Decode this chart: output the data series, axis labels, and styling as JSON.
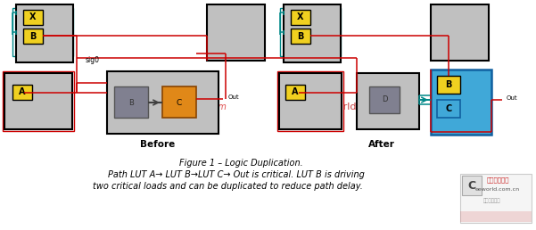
{
  "bg_color": "#ffffff",
  "fig_width": 6.01,
  "fig_height": 2.58,
  "dpi": 100,
  "caption_line1": "Figure 1 – Logic Duplication.",
  "caption_line2": "Path LUT A→ LUT B→LUT C→ Out is critical. LUT B is driving",
  "caption_line3": "two critical loads and can be duplicated to reduce path delay.",
  "before_label": "Before",
  "after_label": "After",
  "sig0_label": "sig0",
  "out_label1": "Out",
  "out_label2": "Out",
  "gray_box_color": "#c0c0c0",
  "gray_box_dark": "#808090",
  "yellow_box_color": "#f0d020",
  "orange_box_color": "#e08818",
  "blue_box_color": "#40a8d8",
  "red_line_color": "#cc0000",
  "teal_line_color": "#008888",
  "arrow_color": "#404040",
  "watermark_red": "#e05050",
  "eeworld_red": "#cc2222",
  "eeworld_gray": "#999999"
}
